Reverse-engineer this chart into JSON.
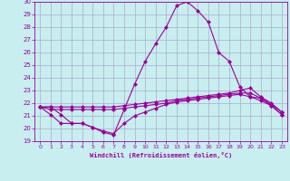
{
  "xlabel": "Windchill (Refroidissement éolien,°C)",
  "background_color": "#c8eef0",
  "line_color": "#990099",
  "grid_color": "#aaaacc",
  "x": [
    0,
    1,
    2,
    3,
    4,
    5,
    6,
    7,
    8,
    9,
    10,
    11,
    12,
    13,
    14,
    15,
    16,
    17,
    18,
    19,
    20,
    21,
    22,
    23
  ],
  "line1": [
    21.7,
    21.7,
    21.1,
    20.4,
    20.4,
    20.1,
    19.7,
    19.5,
    21.5,
    23.5,
    25.3,
    26.7,
    28.0,
    29.7,
    30.0,
    29.3,
    28.4,
    26.0,
    25.3,
    23.3,
    22.5,
    22.4,
    21.8,
    21.1
  ],
  "line2": [
    21.7,
    21.1,
    20.4,
    20.4,
    20.4,
    20.1,
    19.8,
    19.6,
    20.4,
    21.0,
    21.3,
    21.6,
    21.9,
    22.1,
    22.2,
    22.3,
    22.4,
    22.5,
    22.6,
    22.7,
    22.5,
    22.2,
    21.8,
    21.1
  ],
  "line3": [
    21.7,
    21.5,
    21.5,
    21.5,
    21.5,
    21.5,
    21.5,
    21.5,
    21.6,
    21.7,
    21.8,
    21.9,
    22.0,
    22.2,
    22.3,
    22.4,
    22.5,
    22.6,
    22.7,
    22.8,
    22.8,
    22.4,
    21.9,
    21.3
  ],
  "line4": [
    21.7,
    21.7,
    21.7,
    21.7,
    21.7,
    21.7,
    21.7,
    21.7,
    21.8,
    21.9,
    22.0,
    22.1,
    22.2,
    22.3,
    22.4,
    22.5,
    22.6,
    22.7,
    22.8,
    23.0,
    23.2,
    22.5,
    22.0,
    21.3
  ],
  "ylim": [
    19,
    30
  ],
  "xlim_min": -0.5,
  "xlim_max": 23.5,
  "yticks": [
    19,
    20,
    21,
    22,
    23,
    24,
    25,
    26,
    27,
    28,
    29,
    30
  ],
  "xticks": [
    0,
    1,
    2,
    3,
    4,
    5,
    6,
    7,
    8,
    9,
    10,
    11,
    12,
    13,
    14,
    15,
    16,
    17,
    18,
    19,
    20,
    21,
    22,
    23
  ]
}
